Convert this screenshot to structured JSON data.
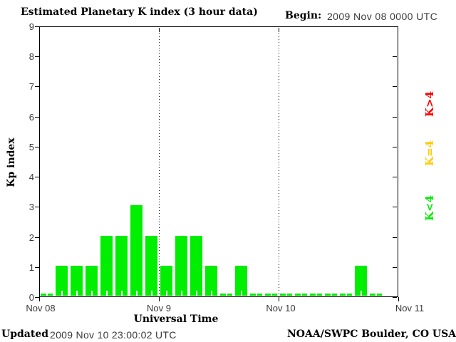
{
  "header": {
    "title": "Estimated Planetary K index (3 hour data)",
    "begin_label": "Begin:",
    "begin_value": "2009 Nov 08 0000 UTC"
  },
  "footer": {
    "updated_label": "Updated",
    "updated_value": "2009 Nov 10 23:00:02 UTC",
    "source": "NOAA/SWPC Boulder, CO USA"
  },
  "legend": {
    "position": "right",
    "items": [
      {
        "label": "K>4",
        "color": "#ff0000"
      },
      {
        "label": "K=4",
        "color": "#ffcc00"
      },
      {
        "label": "K<4",
        "color": "#00ee00"
      }
    ]
  },
  "chart_data": {
    "type": "bar",
    "title": "Estimated Planetary K index (3 hour data)",
    "xlabel": "Universal Time",
    "ylabel": "Kp index",
    "ylim": [
      0,
      9
    ],
    "y_ticks": [
      0,
      1,
      2,
      3,
      4,
      5,
      6,
      7,
      8,
      9
    ],
    "x_tick_labels": [
      "Nov 08",
      "Nov 9",
      "Nov 10",
      "Nov 11"
    ],
    "begin": "2009 Nov 08 0000 UTC",
    "interval_hours": 3,
    "bar_color": "#00ee00",
    "grid": false,
    "day_separator_style": "dotted",
    "values": [
      0,
      1,
      1,
      1,
      2,
      2,
      3,
      2,
      1,
      2,
      2,
      1,
      0,
      1,
      0,
      0,
      0,
      0,
      0,
      0,
      0,
      1,
      0,
      null
    ]
  }
}
